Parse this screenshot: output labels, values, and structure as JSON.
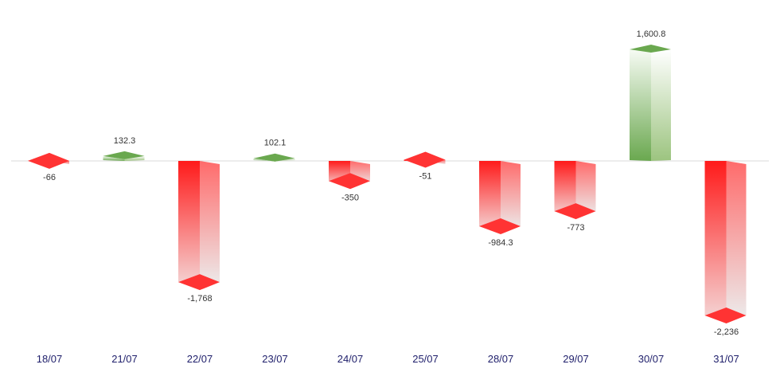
{
  "chart_data": {
    "type": "bar",
    "categories": [
      "18/07",
      "21/07",
      "22/07",
      "23/07",
      "24/07",
      "25/07",
      "28/07",
      "29/07",
      "30/07",
      "31/07"
    ],
    "values": [
      -66,
      132.3,
      -1768,
      102.1,
      -350,
      -51,
      -984.3,
      -773,
      1600.8,
      -2236
    ],
    "value_labels": [
      "-66",
      "132.3",
      "-1,768",
      "102.1",
      "-350",
      "-51",
      "-984.3",
      "-773",
      "1,600.8",
      "-2,236"
    ],
    "title": "",
    "xlabel": "",
    "ylabel": "",
    "ylim": [
      -2236,
      1600.8
    ],
    "grid": false,
    "legend": "none",
    "style": "3d-bar"
  },
  "colors": {
    "positive": "#6aa84f",
    "positive_light": "#f2f8ee",
    "negative": "#ff1a1a",
    "negative_light": "#ececec",
    "axis_line": "#d9d9d9",
    "tick_text": "#1f1f6b"
  }
}
